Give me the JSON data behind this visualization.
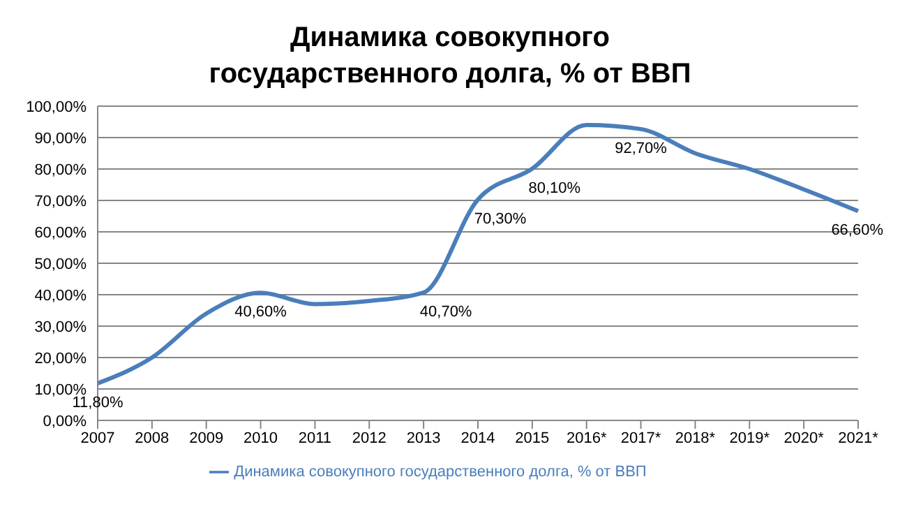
{
  "chart_data": {
    "type": "line",
    "title": "Динамика совокупного государственного долга, % от ВВП",
    "categories": [
      "2007",
      "2008",
      "2009",
      "2010",
      "2011",
      "2012",
      "2013",
      "2014",
      "2015",
      "2016*",
      "2017*",
      "2018*",
      "2019*",
      "2020*",
      "2021*"
    ],
    "series": [
      {
        "name": "Динамика совокупного государственного долга, % от ВВП",
        "color": "#4a7ebb",
        "values": [
          11.8,
          20,
          34,
          40.6,
          37,
          38,
          40.7,
          70.3,
          80.1,
          94,
          92.7,
          85,
          80,
          73.5,
          66.6
        ],
        "value_labels": [
          "11,80%",
          null,
          null,
          "40,60%",
          null,
          null,
          "40,70%",
          "70,30%",
          "80,10%",
          null,
          "92,70%",
          null,
          null,
          null,
          "66,60%"
        ]
      }
    ],
    "ylim": [
      0,
      100
    ],
    "yticks": [
      {
        "value": 0,
        "label": "0,00%"
      },
      {
        "value": 10,
        "label": "10,00%"
      },
      {
        "value": 20,
        "label": "20,00%"
      },
      {
        "value": 30,
        "label": "30,00%"
      },
      {
        "value": 40,
        "label": "40,00%"
      },
      {
        "value": 50,
        "label": "50,00%"
      },
      {
        "value": 60,
        "label": "60,00%"
      },
      {
        "value": 70,
        "label": "70,00%"
      },
      {
        "value": 80,
        "label": "80,00%"
      },
      {
        "value": 90,
        "label": "90,00%"
      },
      {
        "value": 100,
        "label": "100,00%"
      }
    ],
    "grid": "y",
    "legend": "bottom",
    "marker": "none",
    "line_style": "solid"
  }
}
